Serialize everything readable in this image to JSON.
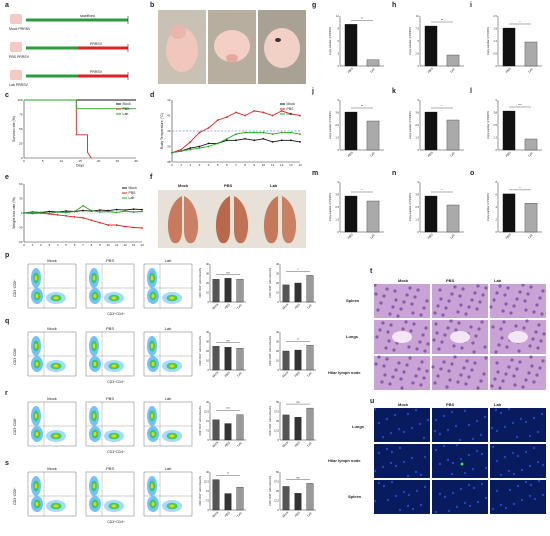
{
  "panel_labels": {
    "a": "a",
    "b": "b",
    "c": "c",
    "d": "d",
    "e": "e",
    "f": "f",
    "g": "g",
    "h": "h",
    "i": "i",
    "j": "j",
    "k": "k",
    "l": "l",
    "m": "m",
    "n": "n",
    "o": "o",
    "p": "p",
    "q": "q",
    "r": "r",
    "s": "s",
    "t": "t",
    "u": "u"
  },
  "schematic": {
    "rows": [
      {
        "name": "Mock PRRSV",
        "note": "sacrificed"
      },
      {
        "name": "PBS PRRSV",
        "note": "PRRSV"
      },
      {
        "name": "Lab PRRSV",
        "note": "PRRSV"
      }
    ]
  },
  "groups": [
    "Mock",
    "PBS",
    "Lab"
  ],
  "group_colors": {
    "Mock": "#111111",
    "PBS": "#e02020",
    "Lab": "#22aa22"
  },
  "flow_axis_x": "CD3⁺CD4⁺",
  "flow_axis_y": "CD3⁺CD8⁺",
  "t_rows": [
    "Spleen",
    "Lungs",
    "Hilar lymph node"
  ],
  "u_rows": [
    "Lungs",
    "Hilar lymph node",
    "Spleen"
  ],
  "chart_data": [
    {
      "id": "c",
      "type": "line",
      "ylabel": "Survival rate (%)",
      "xlabel": "Days",
      "x": [
        0,
        5,
        10,
        15,
        20,
        25,
        30
      ],
      "ylim": [
        0,
        100
      ],
      "series": [
        {
          "name": "Mock",
          "x": [
            0,
            30
          ],
          "values": [
            100,
            100
          ]
        },
        {
          "name": "PBS",
          "x": [
            0,
            14,
            14,
            17,
            17,
            18
          ],
          "values": [
            100,
            100,
            40,
            40,
            10,
            0
          ]
        },
        {
          "name": "Lab",
          "x": [
            0,
            14,
            14,
            30
          ],
          "values": [
            100,
            100,
            85,
            85
          ]
        }
      ]
    },
    {
      "id": "d",
      "type": "line",
      "ylabel": "Body Temperature (°C)",
      "ylim": [
        38,
        42
      ],
      "x": [
        0,
        1,
        2,
        3,
        4,
        5,
        6,
        7,
        8,
        9,
        10,
        11,
        12,
        13,
        14
      ],
      "series": [
        {
          "name": "Mock",
          "values": [
            38.6,
            38.7,
            38.9,
            39.0,
            39.2,
            39.2,
            39.4,
            39.4,
            39.5,
            39.4,
            39.5,
            39.3,
            39.4,
            39.4,
            39.3
          ]
        },
        {
          "name": "PBS",
          "values": [
            38.6,
            38.8,
            39.3,
            39.9,
            40.2,
            40.7,
            40.9,
            41.2,
            41.0,
            41.3,
            41.2,
            41.0,
            41.3,
            41.1,
            41.0
          ]
        },
        {
          "name": "Lab",
          "values": [
            38.6,
            38.7,
            38.8,
            38.9,
            39.0,
            39.2,
            39.5,
            39.8,
            39.9,
            39.9,
            39.9,
            39.8,
            39.9,
            39.9,
            39.8
          ]
        }
      ]
    },
    {
      "id": "e",
      "type": "line",
      "ylabel": "Weight loss rate (%)",
      "ylim": [
        -60,
        60
      ],
      "x": [
        0,
        1,
        2,
        3,
        4,
        5,
        6,
        7,
        8,
        9,
        10,
        11,
        12,
        13,
        14
      ],
      "series": [
        {
          "name": "Mock",
          "values": [
            0,
            2,
            1,
            3,
            2,
            4,
            3,
            5,
            4,
            6,
            5,
            7,
            6,
            8,
            7
          ]
        },
        {
          "name": "PBS",
          "values": [
            0,
            -1,
            0,
            -2,
            -4,
            -6,
            -8,
            -10,
            -15,
            -20,
            -25,
            -25,
            -28,
            -30,
            -31
          ]
        },
        {
          "name": "Lab",
          "values": [
            0,
            1,
            0,
            -1,
            2,
            1,
            3,
            15,
            5,
            2,
            3,
            1,
            4,
            2,
            3
          ]
        }
      ]
    },
    {
      "id": "g",
      "type": "bar",
      "categories": [
        "PBS",
        "Lab"
      ],
      "values": [
        10.0,
        1.5
      ],
      "ylim": [
        0,
        12
      ],
      "sig": "**"
    },
    {
      "id": "h",
      "type": "bar",
      "categories": [
        "PBS",
        "Lab"
      ],
      "values": [
        8.0,
        2.2
      ],
      "ylim": [
        0,
        10
      ],
      "sig": "**"
    },
    {
      "id": "i",
      "type": "bar",
      "categories": [
        "PBS",
        "Lab"
      ],
      "values": [
        1.9,
        1.2
      ],
      "ylim": [
        0,
        2.5
      ],
      "sig": "*"
    },
    {
      "id": "j",
      "type": "bar",
      "categories": [
        "PBS",
        "Lab"
      ],
      "values": [
        3.8,
        2.9
      ],
      "ylim": [
        0,
        5
      ],
      "sig": "**"
    },
    {
      "id": "k",
      "type": "bar",
      "categories": [
        "PBS",
        "Lab"
      ],
      "values": [
        3.8,
        3.0
      ],
      "ylim": [
        0,
        5
      ],
      "sig": "*"
    },
    {
      "id": "l",
      "type": "bar",
      "categories": [
        "PBS",
        "Lab"
      ],
      "values": [
        3.9,
        1.1
      ],
      "ylim": [
        0,
        5
      ],
      "sig": "***"
    },
    {
      "id": "m",
      "type": "bar",
      "categories": [
        "PBS",
        "Lab"
      ],
      "values": [
        3.6,
        3.1
      ],
      "ylim": [
        0,
        5
      ],
      "sig": "*"
    },
    {
      "id": "n",
      "type": "bar",
      "categories": [
        "PBS",
        "Lab"
      ],
      "values": [
        3.6,
        2.7
      ],
      "ylim": [
        0,
        5
      ],
      "sig": "*"
    },
    {
      "id": "o",
      "type": "bar",
      "categories": [
        "PBS",
        "Lab"
      ],
      "values": [
        6.1,
        4.6
      ],
      "ylim": [
        0,
        8
      ],
      "sig": "*"
    },
    {
      "id": "p1",
      "type": "bar",
      "categories": [
        "Mock",
        "PBS",
        "Lab"
      ],
      "values": [
        24,
        25,
        24
      ],
      "ylim": [
        0,
        40
      ],
      "sig": "ns"
    },
    {
      "id": "p2",
      "type": "bar",
      "categories": [
        "Mock",
        "PBS",
        "Lab"
      ],
      "values": [
        18,
        20,
        28
      ],
      "ylim": [
        0,
        40
      ],
      "sig": "*"
    },
    {
      "id": "q1",
      "type": "bar",
      "categories": [
        "Mock",
        "PBS",
        "Lab"
      ],
      "values": [
        25,
        24,
        23
      ],
      "ylim": [
        0,
        40
      ],
      "sig": "ns"
    },
    {
      "id": "q2",
      "type": "bar",
      "categories": [
        "Mock",
        "PBS",
        "Lab"
      ],
      "values": [
        20,
        21,
        26
      ],
      "ylim": [
        0,
        40
      ],
      "sig": "**"
    },
    {
      "id": "r1",
      "type": "bar",
      "categories": [
        "Mock",
        "PBS",
        "Lab"
      ],
      "values": [
        16,
        13,
        20
      ],
      "ylim": [
        0,
        30
      ],
      "sig": "****"
    },
    {
      "id": "r2",
      "type": "bar",
      "categories": [
        "Mock",
        "PBS",
        "Lab"
      ],
      "values": [
        33,
        30,
        42
      ],
      "ylim": [
        0,
        50
      ],
      "sig": "ns"
    },
    {
      "id": "s1",
      "type": "bar",
      "categories": [
        "Mock",
        "PBS",
        "Lab"
      ],
      "values": [
        24,
        13,
        18
      ],
      "ylim": [
        0,
        30
      ],
      "sig": "**"
    },
    {
      "id": "s2",
      "type": "bar",
      "categories": [
        "Mock",
        "PBS",
        "Lab"
      ],
      "values": [
        31,
        22,
        35
      ],
      "ylim": [
        0,
        50
      ],
      "sig": "ns"
    }
  ]
}
